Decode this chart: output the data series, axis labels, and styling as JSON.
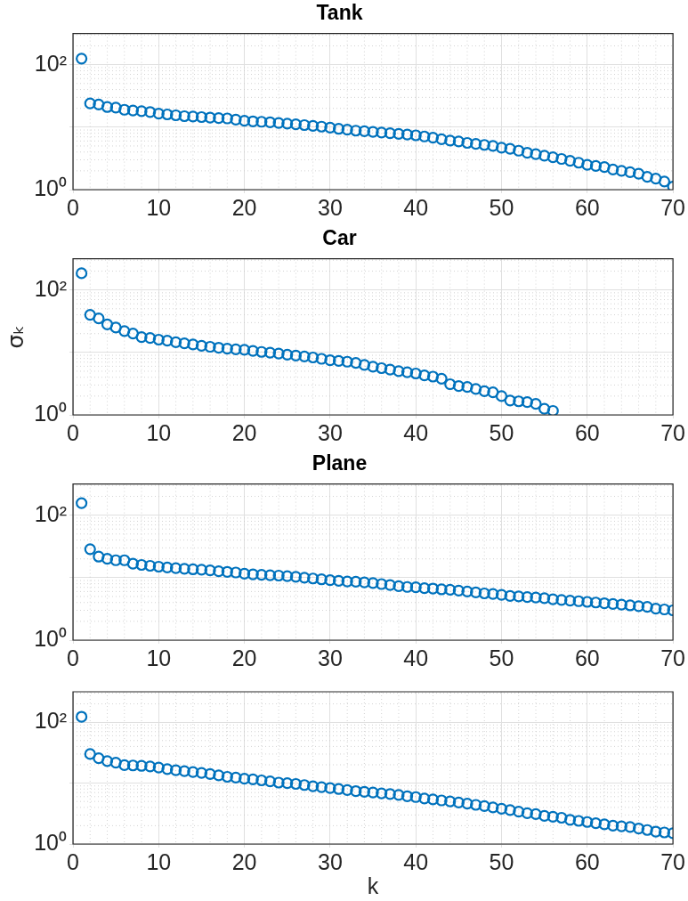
{
  "chart_data": [
    {
      "type": "scatter",
      "title": "Tank",
      "marker": "circle",
      "grid": true,
      "log": "y",
      "xlim": [
        0,
        70
      ],
      "xticks": [
        0,
        10,
        20,
        30,
        40,
        50,
        60,
        70
      ],
      "ylim": [
        1,
        316
      ],
      "yticks": [
        {
          "value": 1,
          "label": "10⁰"
        },
        {
          "value": 10,
          "label": null
        },
        {
          "value": 100,
          "label": "10²"
        }
      ],
      "x": [
        1,
        2,
        3,
        4,
        5,
        6,
        7,
        8,
        9,
        10,
        11,
        12,
        13,
        14,
        15,
        16,
        17,
        18,
        19,
        20,
        21,
        22,
        23,
        24,
        25,
        26,
        27,
        28,
        29,
        30,
        31,
        32,
        33,
        34,
        35,
        36,
        37,
        38,
        39,
        40,
        41,
        42,
        43,
        44,
        45,
        46,
        47,
        48,
        49,
        50,
        51,
        52,
        53,
        54,
        55,
        56,
        57,
        58,
        59,
        60,
        61,
        62,
        63,
        64,
        65,
        66,
        67,
        68,
        69,
        70
      ],
      "series": [
        {
          "color": "#0072bd",
          "values": [
            125,
            24,
            23,
            21,
            20.5,
            19,
            18.5,
            18,
            17.5,
            16.5,
            16,
            15.5,
            15,
            14.8,
            14.5,
            14.2,
            14,
            13.8,
            13.2,
            12.7,
            12.4,
            12.2,
            12,
            11.7,
            11.4,
            11.1,
            10.8,
            10.5,
            10.2,
            9.8,
            9.4,
            9.1,
            8.8,
            8.6,
            8.4,
            8.2,
            8,
            7.8,
            7.6,
            7.4,
            7.1,
            6.8,
            6.4,
            6.1,
            5.9,
            5.6,
            5.4,
            5.2,
            5,
            4.7,
            4.5,
            4.2,
            3.9,
            3.7,
            3.5,
            3.3,
            3.1,
            2.9,
            2.7,
            2.5,
            2.4,
            2.3,
            2.1,
            2,
            1.9,
            1.8,
            1.6,
            1.5,
            1.35,
            1.12
          ]
        }
      ]
    },
    {
      "type": "scatter",
      "title": "Car",
      "ylabel": "σₖ",
      "marker": "circle",
      "grid": true,
      "log": "y",
      "xlim": [
        0,
        70
      ],
      "xticks": [
        0,
        10,
        20,
        30,
        40,
        50,
        60,
        70
      ],
      "ylim": [
        1,
        316
      ],
      "yticks": [
        {
          "value": 1,
          "label": "10⁰"
        },
        {
          "value": 10,
          "label": null
        },
        {
          "value": 100,
          "label": "10²"
        }
      ],
      "x": [
        1,
        2,
        3,
        4,
        5,
        6,
        7,
        8,
        9,
        10,
        11,
        12,
        13,
        14,
        15,
        16,
        17,
        18,
        19,
        20,
        21,
        22,
        23,
        24,
        25,
        26,
        27,
        28,
        29,
        30,
        31,
        32,
        33,
        34,
        35,
        36,
        37,
        38,
        39,
        40,
        41,
        42,
        43,
        44,
        45,
        46,
        47,
        48,
        49,
        50,
        51,
        52,
        53,
        54,
        55,
        56
      ],
      "series": [
        {
          "color": "#0072bd",
          "values": [
            185,
            40,
            35,
            28,
            25,
            22,
            20,
            17.6,
            17,
            16,
            15.4,
            14.6,
            14,
            13.4,
            12.8,
            12.3,
            11.9,
            11.5,
            11.2,
            11,
            10.6,
            10.2,
            9.9,
            9.6,
            9.2,
            8.9,
            8.6,
            8.3,
            7.9,
            7.5,
            7.3,
            7.1,
            6.8,
            6.3,
            5.9,
            5.6,
            5.3,
            5,
            4.8,
            4.6,
            4.3,
            4.1,
            3.8,
            3.1,
            2.9,
            2.8,
            2.6,
            2.4,
            2.3,
            2,
            1.7,
            1.65,
            1.6,
            1.5,
            1.25,
            1.16
          ]
        }
      ]
    },
    {
      "type": "scatter",
      "title": "Plane",
      "marker": "circle",
      "grid": true,
      "log": "y",
      "xlim": [
        0,
        70
      ],
      "xticks": [
        0,
        10,
        20,
        30,
        40,
        50,
        60,
        70
      ],
      "ylim": [
        1,
        316
      ],
      "yticks": [
        {
          "value": 1,
          "label": "10⁰"
        },
        {
          "value": 10,
          "label": null
        },
        {
          "value": 100,
          "label": "10²"
        }
      ],
      "x": [
        1,
        2,
        3,
        4,
        5,
        6,
        7,
        8,
        9,
        10,
        11,
        12,
        13,
        14,
        15,
        16,
        17,
        18,
        19,
        20,
        21,
        22,
        23,
        24,
        25,
        26,
        27,
        28,
        29,
        30,
        31,
        32,
        33,
        34,
        35,
        36,
        37,
        38,
        39,
        40,
        41,
        42,
        43,
        44,
        45,
        46,
        47,
        48,
        49,
        50,
        51,
        52,
        53,
        54,
        55,
        56,
        57,
        58,
        59,
        60,
        61,
        62,
        63,
        64,
        65,
        66,
        67,
        68,
        69,
        70
      ],
      "series": [
        {
          "color": "#0072bd",
          "values": [
            156,
            28.6,
            21.7,
            20,
            19,
            19,
            16.7,
            16,
            15.5,
            15,
            14.6,
            14.2,
            13.9,
            13.6,
            13.4,
            13.1,
            12.7,
            12.4,
            12.1,
            11.6,
            11.3,
            11.1,
            10.9,
            10.8,
            10.6,
            10.3,
            10,
            9.7,
            9.4,
            9.1,
            8.9,
            8.7,
            8.6,
            8.4,
            8.2,
            7.9,
            7.6,
            7.3,
            7.1,
            7,
            6.8,
            6.7,
            6.5,
            6.4,
            6.2,
            6,
            5.8,
            5.6,
            5.5,
            5.3,
            5.1,
            5,
            4.9,
            4.8,
            4.7,
            4.5,
            4.4,
            4.3,
            4.2,
            4.1,
            4,
            3.9,
            3.8,
            3.7,
            3.6,
            3.5,
            3.4,
            3.2,
            3.1,
            3
          ]
        }
      ]
    },
    {
      "type": "scatter",
      "xlabel": "k",
      "marker": "circle",
      "grid": true,
      "log": "y",
      "xlim": [
        0,
        70
      ],
      "xticks": [
        0,
        10,
        20,
        30,
        40,
        50,
        60,
        70
      ],
      "ylim": [
        1,
        316
      ],
      "yticks": [
        {
          "value": 1,
          "label": "10⁰"
        },
        {
          "value": 10,
          "label": null
        },
        {
          "value": 100,
          "label": "10²"
        }
      ],
      "x": [
        1,
        2,
        3,
        4,
        5,
        6,
        7,
        8,
        9,
        10,
        11,
        12,
        13,
        14,
        15,
        16,
        17,
        18,
        19,
        20,
        21,
        22,
        23,
        24,
        25,
        26,
        27,
        28,
        29,
        30,
        31,
        32,
        33,
        34,
        35,
        36,
        37,
        38,
        39,
        40,
        41,
        42,
        43,
        44,
        45,
        46,
        47,
        48,
        49,
        50,
        51,
        52,
        53,
        54,
        55,
        56,
        57,
        58,
        59,
        60,
        61,
        62,
        63,
        64,
        65,
        66,
        67,
        68,
        69,
        70
      ],
      "series": [
        {
          "color": "#0072bd",
          "values": [
            123,
            30,
            25.6,
            23,
            21.7,
            19.8,
            19.5,
            19.2,
            18.8,
            18,
            17,
            16.3,
            15.7,
            15.2,
            14.7,
            14.1,
            13.4,
            12.7,
            12.3,
            11.8,
            11.5,
            11.1,
            10.7,
            10.2,
            10,
            9.7,
            9.3,
            8.9,
            8.6,
            8.3,
            8,
            7.7,
            7.4,
            7.2,
            7,
            6.8,
            6.6,
            6.4,
            6.1,
            5.9,
            5.6,
            5.4,
            5.2,
            5,
            4.8,
            4.6,
            4.4,
            4.2,
            4,
            3.8,
            3.6,
            3.4,
            3.2,
            3.1,
            2.9,
            2.8,
            2.7,
            2.5,
            2.4,
            2.3,
            2.2,
            2.1,
            2,
            1.95,
            1.9,
            1.8,
            1.7,
            1.6,
            1.55,
            1.5
          ]
        }
      ]
    }
  ]
}
